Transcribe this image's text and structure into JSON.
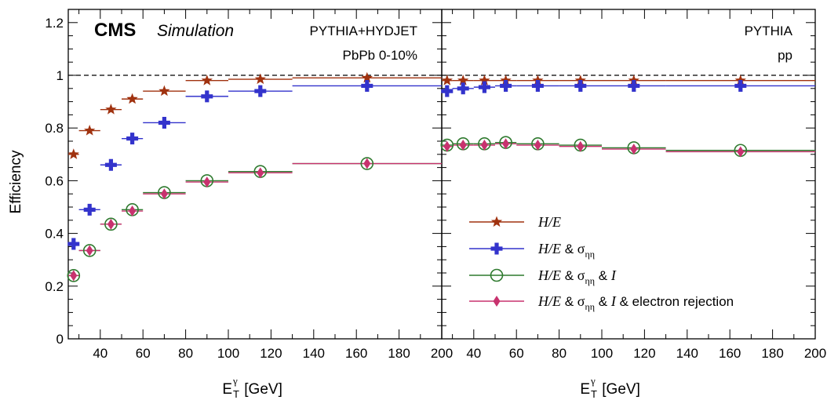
{
  "chart_data": [
    {
      "type": "scatter",
      "panel": "left",
      "x_bins": [
        [
          25,
          30
        ],
        [
          30,
          40
        ],
        [
          40,
          50
        ],
        [
          50,
          60
        ],
        [
          60,
          80
        ],
        [
          80,
          100
        ],
        [
          100,
          130
        ],
        [
          130,
          200
        ]
      ],
      "x": [
        27.5,
        35,
        45,
        55,
        70,
        90,
        115,
        165
      ],
      "series": [
        {
          "name": "H/E",
          "color": "#a0320f",
          "marker": "star",
          "values": [
            0.7,
            0.79,
            0.87,
            0.91,
            0.94,
            0.98,
            0.985,
            0.99
          ]
        },
        {
          "name": "H/E & σηη",
          "color": "#3333cc",
          "marker": "cross",
          "values": [
            0.36,
            0.49,
            0.66,
            0.76,
            0.82,
            0.92,
            0.94,
            0.96
          ]
        },
        {
          "name": "H/E & σηη & I",
          "color": "#2f7a2f",
          "marker": "circle",
          "values": [
            0.24,
            0.335,
            0.435,
            0.49,
            0.555,
            0.6,
            0.635,
            0.665
          ]
        },
        {
          "name": "H/E & σηη & I & electron rejection",
          "color": "#c8326e",
          "marker": "diamond",
          "values": [
            0.24,
            0.335,
            0.435,
            0.485,
            0.55,
            0.595,
            0.63,
            0.665
          ]
        }
      ],
      "xlim": [
        25,
        200
      ],
      "ylim": [
        0,
        1.25
      ],
      "x_ticks": [
        40,
        60,
        80,
        100,
        120,
        140,
        160,
        180,
        200
      ],
      "y_ticks": [
        "0",
        "0.2",
        "0.4",
        "0.6",
        "0.8",
        "1",
        "1.2"
      ],
      "y_tick_values": [
        0,
        0.2,
        0.4,
        0.6,
        0.8,
        1.0,
        1.2
      ],
      "reference_line": 1.0
    },
    {
      "type": "scatter",
      "panel": "right",
      "x_bins": [
        [
          25,
          30
        ],
        [
          30,
          40
        ],
        [
          40,
          50
        ],
        [
          50,
          60
        ],
        [
          60,
          80
        ],
        [
          80,
          100
        ],
        [
          100,
          130
        ],
        [
          130,
          200
        ]
      ],
      "x": [
        27.5,
        35,
        45,
        55,
        70,
        90,
        115,
        165
      ],
      "series": [
        {
          "name": "H/E",
          "color": "#a0320f",
          "marker": "star",
          "values": [
            0.98,
            0.98,
            0.98,
            0.98,
            0.98,
            0.98,
            0.98,
            0.98
          ]
        },
        {
          "name": "H/E & σηη",
          "color": "#3333cc",
          "marker": "cross",
          "values": [
            0.94,
            0.95,
            0.955,
            0.96,
            0.96,
            0.96,
            0.96,
            0.96
          ]
        },
        {
          "name": "H/E & σηη & I",
          "color": "#2f7a2f",
          "marker": "circle",
          "values": [
            0.735,
            0.74,
            0.74,
            0.745,
            0.74,
            0.735,
            0.725,
            0.715
          ]
        },
        {
          "name": "H/E & σηη & I & electron rejection",
          "color": "#c8326e",
          "marker": "diamond",
          "values": [
            0.73,
            0.735,
            0.735,
            0.74,
            0.735,
            0.73,
            0.72,
            0.71
          ]
        }
      ],
      "xlim": [
        25,
        200
      ],
      "ylim": [
        0,
        1.25
      ],
      "x_ticks": [
        40,
        60,
        80,
        100,
        120,
        140,
        160,
        180,
        200
      ],
      "reference_line": 1.0
    }
  ],
  "labels": {
    "cms": "CMS",
    "simulation": "Simulation",
    "left_generator": "PYTHIA+HYDJET",
    "left_system": "PbPb 0-10%",
    "right_generator": "PYTHIA",
    "right_system": "pp",
    "ylabel": "Efficiency",
    "xlabel_main": "E",
    "xlabel_sup": "γ",
    "xlabel_sub": "T",
    "xlabel_unit": " [GeV]",
    "shared_edge_tick": "200"
  },
  "legend": {
    "he": "H/E",
    "amp": " & ",
    "sigma": "σ",
    "sigma_sub": "ηη",
    "iso": "I",
    "electron": " & electron rejection"
  }
}
